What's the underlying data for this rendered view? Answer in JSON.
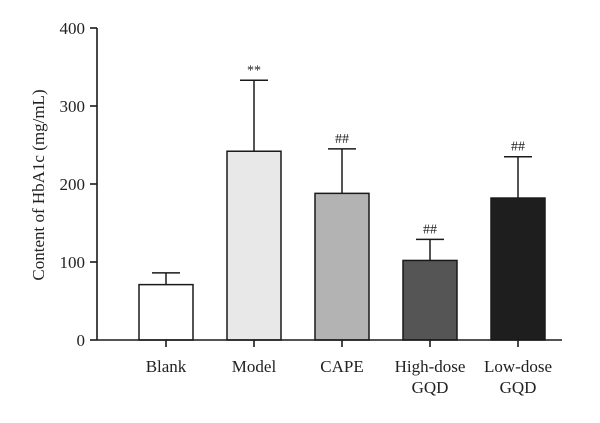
{
  "chart_data": {
    "type": "bar",
    "title": "",
    "xlabel": "",
    "ylabel": "Content of HbA1c (mg/mL)",
    "ylim": [
      0,
      400
    ],
    "yticks": [
      0,
      100,
      200,
      300,
      400
    ],
    "categories": [
      [
        "Blank"
      ],
      [
        "Model"
      ],
      [
        "CAPE"
      ],
      [
        "High-dose",
        "GQD"
      ],
      [
        "Low-dose",
        "GQD"
      ]
    ],
    "values": [
      71,
      242,
      188,
      102,
      182
    ],
    "error_upper": [
      15,
      91,
      57,
      27,
      53
    ],
    "significance": [
      "",
      "**",
      "##",
      "##",
      "##"
    ],
    "bar_colors": [
      "#ffffff",
      "#e8e8e8",
      "#b3b3b3",
      "#555555",
      "#1e1e1e"
    ],
    "edge_color": "#1a1a1a"
  }
}
